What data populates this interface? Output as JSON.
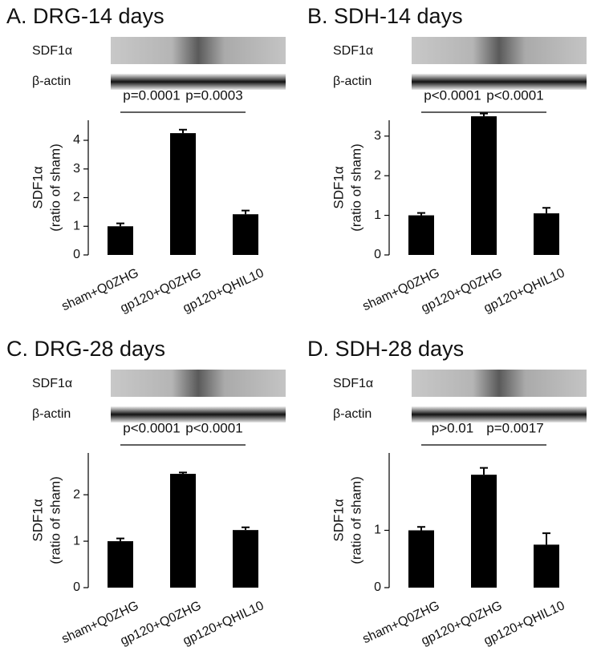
{
  "chart_data": [
    {
      "type": "bar",
      "title": "A. DRG-14 days",
      "blot_labels": [
        "SDF1α",
        "β-actin"
      ],
      "y_label": [
        "SDF1α",
        "(ratio of sham)"
      ],
      "categories": [
        "sham+Q0ZHG",
        "gp120+Q0ZHG",
        "gp120+QHIL10"
      ],
      "values": [
        1.0,
        4.25,
        1.42
      ],
      "errors": [
        0.1,
        0.12,
        0.13
      ],
      "ylim": [
        0,
        4.7
      ],
      "yticks": [
        0,
        1,
        2,
        3,
        4
      ],
      "annotations": [
        "p=0.0001",
        "p=0.0003"
      ],
      "color": "#000000"
    },
    {
      "type": "bar",
      "title": "B. SDH-14 days",
      "blot_labels": [
        "SDF1α",
        "β-actin"
      ],
      "y_label": [
        "SDF1α",
        "(ratio of sham)"
      ],
      "categories": [
        "sham+Q0ZHG",
        "gp120+Q0ZHG",
        "gp120+QHIL10"
      ],
      "values": [
        1.0,
        3.5,
        1.05
      ],
      "errors": [
        0.06,
        0.07,
        0.14
      ],
      "ylim": [
        0,
        3.4
      ],
      "yticks": [
        0,
        1,
        2,
        3
      ],
      "annotations": [
        "p<0.0001",
        "p<0.0001"
      ],
      "color": "#000000"
    },
    {
      "type": "bar",
      "title": "C. DRG-28 days",
      "blot_labels": [
        "SDF1α",
        "β-actin"
      ],
      "y_label": [
        "SDF1α",
        "(ratio of sham)"
      ],
      "categories": [
        "sham+Q0ZHG",
        "gp120+Q0ZHG",
        "gp120+QHIL10"
      ],
      "values": [
        1.0,
        2.45,
        1.24
      ],
      "errors": [
        0.06,
        0.03,
        0.06
      ],
      "ylim": [
        0,
        2.9
      ],
      "yticks": [
        0,
        1,
        2
      ],
      "annotations": [
        "p<0.0001",
        "p<0.0001"
      ],
      "color": "#000000"
    },
    {
      "type": "bar",
      "title": "D. SDH-28 days",
      "blot_labels": [
        "SDF1α",
        "β-actin"
      ],
      "y_label": [
        "SDF1α",
        "(ratio of sham)"
      ],
      "categories": [
        "sham+Q0ZHG",
        "gp120+Q0ZHG",
        "gp120+QHIL10"
      ],
      "values": [
        1.0,
        1.97,
        0.75
      ],
      "errors": [
        0.06,
        0.12,
        0.2
      ],
      "ylim": [
        0,
        2.35
      ],
      "yticks": [
        0,
        1
      ],
      "annotations": [
        "p>0.01",
        "p=0.0017"
      ],
      "color": "#000000"
    }
  ]
}
